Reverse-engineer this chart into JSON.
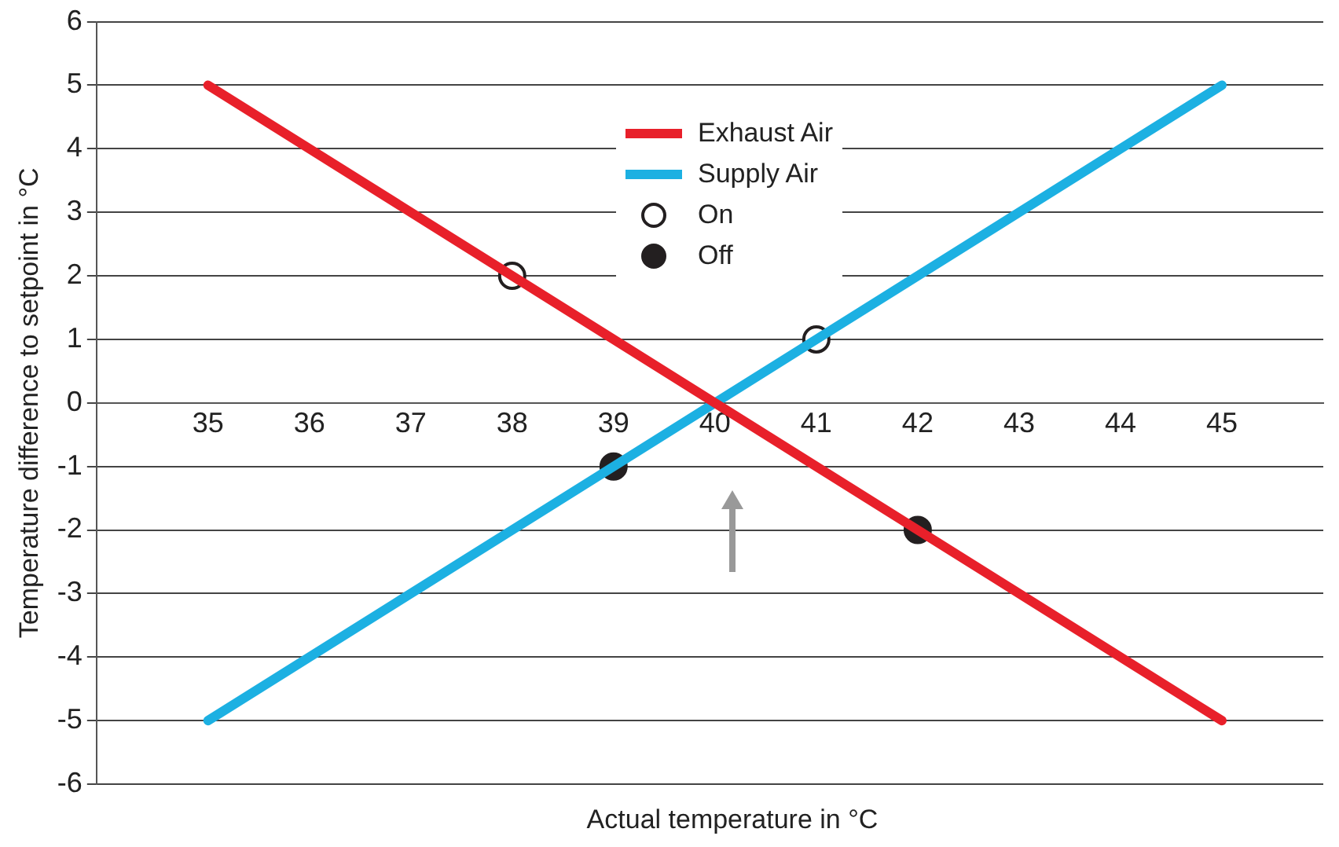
{
  "chart_data": {
    "type": "line",
    "xlabel": "Actual temperature in °C",
    "ylabel": "Temperature difference to setpoint in °C",
    "xlim": [
      33.9,
      46
    ],
    "xticks": [
      35,
      36,
      37,
      38,
      39,
      40,
      41,
      42,
      43,
      44,
      45
    ],
    "ylim": [
      -6,
      6
    ],
    "yticks": [
      -6,
      -5,
      -4,
      -3,
      -2,
      -1,
      0,
      1,
      2,
      3,
      4,
      5,
      6
    ],
    "grid": "y",
    "legend": "top",
    "series": [
      {
        "name": "Exhaust Air",
        "color": "#e8202a",
        "x": [
          35,
          45
        ],
        "values": [
          5,
          -5
        ],
        "marker": "none"
      },
      {
        "name": "Supply Air",
        "color": "#1cb0e2",
        "x": [
          35,
          45
        ],
        "values": [
          -5,
          5
        ],
        "marker": "none"
      },
      {
        "name": "On",
        "type": "scatter",
        "color": "#ffffff",
        "x": [
          38,
          41
        ],
        "values": [
          2,
          1
        ],
        "marker": "circle"
      },
      {
        "name": "Off",
        "type": "scatter",
        "color": "#231f20",
        "x": [
          39,
          42
        ],
        "values": [
          -1,
          -2
        ],
        "marker": "circle"
      }
    ]
  }
}
